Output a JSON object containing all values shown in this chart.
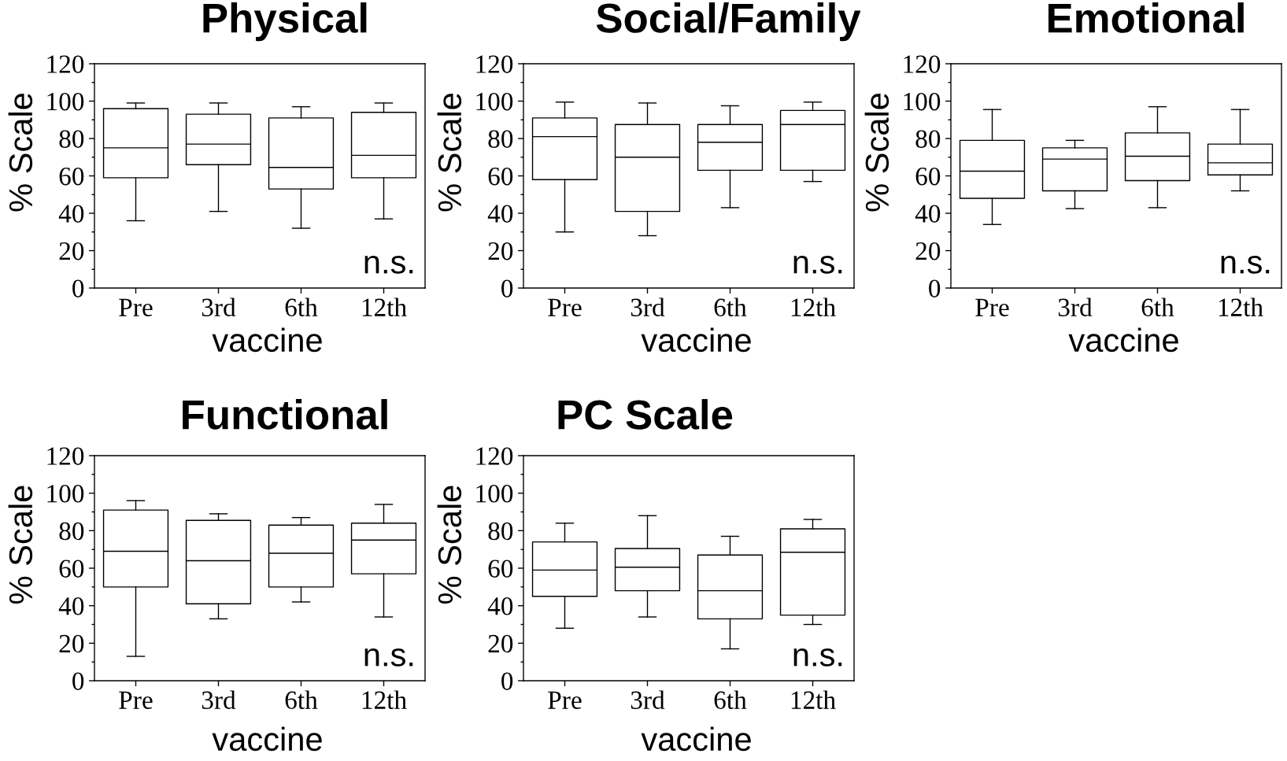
{
  "chart_data": [
    {
      "type": "box",
      "title": "Physical",
      "xlabel": "vaccine",
      "ylabel": "% Scale",
      "categories": [
        "Pre",
        "3rd",
        "6th",
        "12th"
      ],
      "boxes": [
        {
          "low": 36,
          "q1": 59,
          "median": 75,
          "q3": 96,
          "high": 99
        },
        {
          "low": 41,
          "q1": 66,
          "median": 77,
          "q3": 93,
          "high": 99
        },
        {
          "low": 32,
          "q1": 53,
          "median": 64.5,
          "q3": 91,
          "high": 97
        },
        {
          "low": 37,
          "q1": 59,
          "median": 71,
          "q3": 94,
          "high": 99
        }
      ],
      "ylim": [
        0,
        120
      ],
      "yticks": [
        0,
        {
          "value": 10,
          "label": null
        },
        20,
        {
          "value": 30,
          "label": null
        },
        40,
        {
          "value": 50,
          "label": null
        },
        60,
        {
          "value": 70,
          "label": null
        },
        80,
        {
          "value": 90,
          "label": null
        },
        100,
        {
          "value": 110,
          "label": null
        },
        120
      ],
      "annotations": [
        "n.s."
      ]
    },
    {
      "type": "box",
      "title": "Social/Family",
      "xlabel": "vaccine",
      "ylabel": "% Scale",
      "categories": [
        "Pre",
        "3rd",
        "6th",
        "12th"
      ],
      "boxes": [
        {
          "low": 30,
          "q1": 58,
          "median": 81,
          "q3": 91,
          "high": 99.5
        },
        {
          "low": 28,
          "q1": 41,
          "median": 70,
          "q3": 87.5,
          "high": 99
        },
        {
          "low": 43,
          "q1": 63,
          "median": 78,
          "q3": 87.5,
          "high": 97.5
        },
        {
          "low": 57,
          "q1": 63,
          "median": 87.5,
          "q3": 95,
          "high": 99.5
        }
      ],
      "ylim": [
        0,
        120
      ],
      "yticks": [
        0,
        {
          "value": 10,
          "label": null
        },
        20,
        {
          "value": 30,
          "label": null
        },
        40,
        {
          "value": 50,
          "label": null
        },
        60,
        {
          "value": 70,
          "label": null
        },
        80,
        {
          "value": 90,
          "label": null
        },
        100,
        {
          "value": 110,
          "label": null
        },
        120
      ],
      "annotations": [
        "n.s."
      ]
    },
    {
      "type": "box",
      "title": "Emotional",
      "xlabel": "vaccine",
      "ylabel": "% Scale",
      "categories": [
        "Pre",
        "3rd",
        "6th",
        "12th"
      ],
      "boxes": [
        {
          "low": 34,
          "q1": 48,
          "median": 62.5,
          "q3": 79,
          "high": 95.5
        },
        {
          "low": 42.5,
          "q1": 52,
          "median": 69,
          "q3": 75,
          "high": 79
        },
        {
          "low": 43,
          "q1": 57.5,
          "median": 70.5,
          "q3": 83,
          "high": 97
        },
        {
          "low": 52,
          "q1": 60.5,
          "median": 67,
          "q3": 77,
          "high": 95.5
        }
      ],
      "ylim": [
        0,
        120
      ],
      "yticks": [
        0,
        {
          "value": 10,
          "label": null
        },
        20,
        {
          "value": 30,
          "label": null
        },
        40,
        {
          "value": 50,
          "label": null
        },
        60,
        {
          "value": 70,
          "label": null
        },
        80,
        {
          "value": 90,
          "label": null
        },
        100,
        {
          "value": 110,
          "label": null
        },
        120
      ],
      "annotations": [
        "n.s."
      ]
    },
    {
      "type": "box",
      "title": "Functional",
      "xlabel": "vaccine",
      "ylabel": "% Scale",
      "categories": [
        "Pre",
        "3rd",
        "6th",
        "12th"
      ],
      "boxes": [
        {
          "low": 13,
          "q1": 50,
          "median": 69,
          "q3": 91,
          "high": 96
        },
        {
          "low": 33,
          "q1": 41,
          "median": 64,
          "q3": 85.5,
          "high": 89
        },
        {
          "low": 42,
          "q1": 50,
          "median": 68,
          "q3": 83,
          "high": 87
        },
        {
          "low": 34,
          "q1": 57,
          "median": 75,
          "q3": 84,
          "high": 94
        }
      ],
      "ylim": [
        0,
        120
      ],
      "yticks": [
        0,
        {
          "value": 10,
          "label": null
        },
        20,
        {
          "value": 30,
          "label": null
        },
        40,
        {
          "value": 50,
          "label": null
        },
        60,
        {
          "value": 70,
          "label": null
        },
        80,
        {
          "value": 90,
          "label": null
        },
        100,
        {
          "value": 110,
          "label": null
        },
        120
      ],
      "annotations": [
        "n.s."
      ]
    },
    {
      "type": "box",
      "title": "PC Scale",
      "xlabel": "vaccine",
      "ylabel": "% Scale",
      "categories": [
        "Pre",
        "3rd",
        "6th",
        "12th"
      ],
      "boxes": [
        {
          "low": 28,
          "q1": 45,
          "median": 59,
          "q3": 74,
          "high": 84
        },
        {
          "low": 34,
          "q1": 48,
          "median": 60.5,
          "q3": 70.5,
          "high": 88
        },
        {
          "low": 17,
          "q1": 33,
          "median": 48,
          "q3": 67,
          "high": 77
        },
        {
          "low": 30,
          "q1": 35,
          "median": 68.5,
          "q3": 81,
          "high": 86
        }
      ],
      "ylim": [
        0,
        120
      ],
      "yticks": [
        0,
        {
          "value": 10,
          "label": null
        },
        20,
        {
          "value": 30,
          "label": null
        },
        40,
        {
          "value": 50,
          "label": null
        },
        60,
        {
          "value": 70,
          "label": null
        },
        80,
        {
          "value": 90,
          "label": null
        },
        100,
        {
          "value": 110,
          "label": null
        },
        120
      ],
      "annotations": [
        "n.s."
      ]
    }
  ]
}
